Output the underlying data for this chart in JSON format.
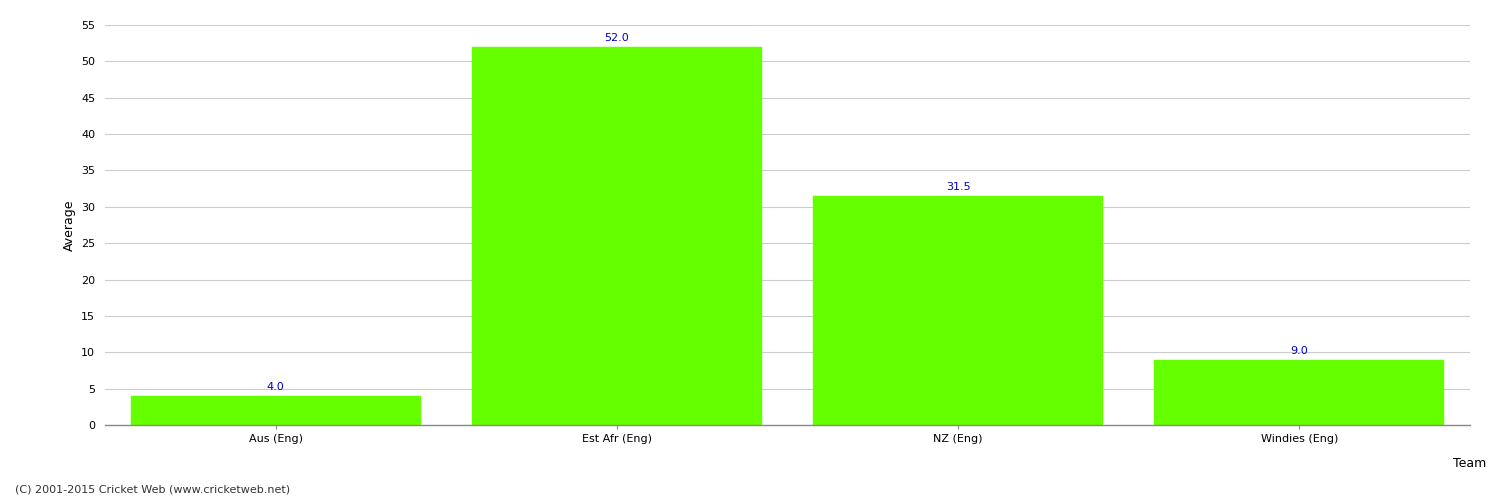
{
  "categories": [
    "Aus (Eng)",
    "Est Afr (Eng)",
    "NZ (Eng)",
    "Windies (Eng)"
  ],
  "values": [
    4.0,
    52.0,
    31.5,
    9.0
  ],
  "bar_color": "#66ff00",
  "bar_edge_color": "#66ff00",
  "xlabel": "Team",
  "ylabel": "Average",
  "ylim": [
    0,
    55
  ],
  "yticks": [
    0,
    5,
    10,
    15,
    20,
    25,
    30,
    35,
    40,
    45,
    50,
    55
  ],
  "label_color": "#0000cc",
  "label_fontsize": 8,
  "axis_fontsize": 8,
  "xlabel_fontsize": 9,
  "ylabel_fontsize": 9,
  "grid_color": "#cccccc",
  "background_color": "#ffffff",
  "footer_text": "(C) 2001-2015 Cricket Web (www.cricketweb.net)",
  "footer_fontsize": 8,
  "footer_color": "#333333"
}
